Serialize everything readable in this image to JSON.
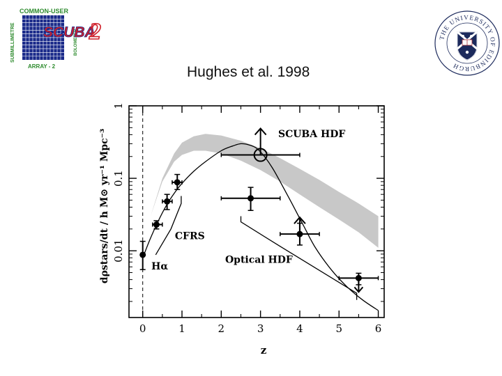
{
  "slide": {
    "title": "Hughes et al. 1998"
  },
  "logos": {
    "scuba": {
      "top_text": "COMMON-USER",
      "main_text": "SCUBA",
      "digit": "2",
      "bottom_text": "ARRAY - 2",
      "left_text": "SUBMILLIMETRE",
      "right_text": "BOLOMETER"
    },
    "university": {
      "ring_text": "THE UNIVERSITY OF EDINBURGH"
    }
  },
  "colors": {
    "band": "#c8c8c8",
    "ink": "#000000",
    "scuba_red": "#d0202a",
    "scuba_blue": "#1a2a8a",
    "scuba_green": "#2e8b2e",
    "edin_navy": "#1c2a5c",
    "edin_red": "#a8323a"
  },
  "chart_data": {
    "type": "scatter",
    "xlabel": "z",
    "ylabel": "dρstars/dt / h M⊙ yr⁻¹ Mpc⁻³",
    "xlim": [
      -0.35,
      6.15
    ],
    "ylim": [
      0.0012,
      1.0
    ],
    "yscale": "log",
    "x_ticks": [
      0,
      1,
      2,
      3,
      4,
      5,
      6
    ],
    "x_tick_labels": [
      "0",
      "1",
      "2",
      "3",
      "4",
      "5",
      "6"
    ],
    "y_ticks": [
      0.01,
      0.1,
      1
    ],
    "y_tick_labels": [
      "0.01",
      "0.1",
      "1"
    ],
    "points": [
      {
        "x": 0.0,
        "y": 0.0088,
        "xerr": [
          0.0,
          0.0
        ],
        "yerr": [
          0.0055,
          0.0135
        ],
        "marker": "filled",
        "arrow": "none"
      },
      {
        "x": 0.35,
        "y": 0.023,
        "xerr": [
          0.25,
          0.5
        ],
        "yerr": [
          0.02,
          0.026
        ],
        "marker": "filled",
        "arrow": "none"
      },
      {
        "x": 0.62,
        "y": 0.048,
        "xerr": [
          0.5,
          0.75
        ],
        "yerr": [
          0.037,
          0.06
        ],
        "marker": "filled",
        "arrow": "none"
      },
      {
        "x": 0.88,
        "y": 0.088,
        "xerr": [
          0.75,
          1.0
        ],
        "yerr": [
          0.07,
          0.113
        ],
        "marker": "filled",
        "arrow": "none"
      },
      {
        "x": 2.75,
        "y": 0.053,
        "xerr": [
          2.0,
          3.5
        ],
        "yerr": [
          0.036,
          0.075
        ],
        "marker": "filled",
        "arrow": "none"
      },
      {
        "x": 4.0,
        "y": 0.017,
        "xerr": [
          3.5,
          4.5
        ],
        "yerr": [
          0.012,
          0.024
        ],
        "marker": "filled",
        "arrow": "up"
      },
      {
        "x": 5.5,
        "y": 0.0042,
        "xerr": [
          5.0,
          6.0
        ],
        "yerr": [
          0.0034,
          0.0049
        ],
        "marker": "filled",
        "arrow": "down"
      },
      {
        "x": 3.0,
        "y": 0.21,
        "xerr": [
          2.0,
          4.0
        ],
        "yerr": [
          0.21,
          0.21
        ],
        "marker": "open-circle",
        "arrow": "up"
      }
    ],
    "model_curve": {
      "x": [
        0.0,
        0.2,
        0.4,
        0.6,
        0.8,
        1.0,
        1.3,
        1.6,
        2.0,
        2.3,
        2.5,
        2.7,
        2.9,
        3.1,
        3.3,
        3.5,
        3.8,
        4.1,
        4.4,
        4.8,
        5.2,
        5.6,
        6.0
      ],
      "y": [
        0.008,
        0.015,
        0.026,
        0.042,
        0.062,
        0.085,
        0.125,
        0.17,
        0.24,
        0.28,
        0.3,
        0.29,
        0.26,
        0.2,
        0.14,
        0.09,
        0.045,
        0.022,
        0.011,
        0.0055,
        0.0032,
        0.0021,
        0.0015
      ]
    },
    "band": {
      "x": [
        0.2,
        0.5,
        0.8,
        1.0,
        1.3,
        1.6,
        2.0,
        2.5,
        3.0,
        3.5,
        4.0,
        4.5,
        5.0,
        5.5,
        6.0
      ],
      "upper": [
        0.03,
        0.1,
        0.22,
        0.31,
        0.38,
        0.41,
        0.39,
        0.33,
        0.26,
        0.19,
        0.135,
        0.095,
        0.065,
        0.045,
        0.03
      ],
      "lower": [
        0.03,
        0.09,
        0.17,
        0.21,
        0.24,
        0.24,
        0.22,
        0.175,
        0.13,
        0.09,
        0.06,
        0.04,
        0.027,
        0.018,
        0.011
      ]
    },
    "bracket_lines": [
      {
        "x": [
          0.33,
          0.72,
          0.98,
          0.98
        ],
        "y": [
          0.0088,
          0.02,
          0.045,
          0.057
        ]
      },
      {
        "x": [
          2.5,
          2.5,
          3.5,
          5.45,
          5.45
        ],
        "y": [
          0.03,
          0.025,
          0.0115,
          0.0026,
          0.0021
        ]
      }
    ],
    "dashed_vline_x": 0.0,
    "annotations": [
      {
        "text": "SCUBA HDF",
        "x": 3.45,
        "y": 0.37
      },
      {
        "text": "CFRS",
        "x": 0.82,
        "y": 0.0145
      },
      {
        "text": "Optical HDF",
        "x": 2.1,
        "y": 0.0068
      },
      {
        "text": "Hα",
        "x": 0.22,
        "y": 0.0055
      }
    ],
    "grid": false,
    "legend": "none"
  }
}
